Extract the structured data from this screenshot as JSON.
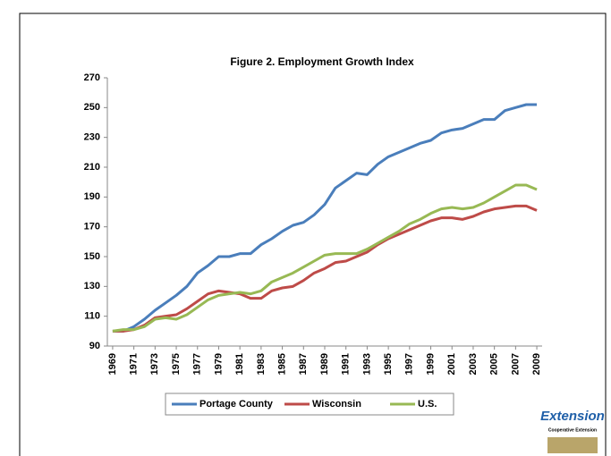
{
  "chart_data": {
    "type": "line",
    "title": "Figure 2. Employment Growth Index",
    "x": [
      1969,
      1970,
      1971,
      1972,
      1973,
      1974,
      1975,
      1976,
      1977,
      1978,
      1979,
      1980,
      1981,
      1982,
      1983,
      1984,
      1985,
      1986,
      1987,
      1988,
      1989,
      1990,
      1991,
      1992,
      1993,
      1994,
      1995,
      1996,
      1997,
      1998,
      1999,
      2000,
      2001,
      2002,
      2003,
      2004,
      2005,
      2006,
      2007,
      2008,
      2009
    ],
    "xlim": [
      1968.5,
      2009.5
    ],
    "xticks": [
      1969,
      1971,
      1973,
      1975,
      1977,
      1979,
      1981,
      1983,
      1985,
      1987,
      1989,
      1991,
      1993,
      1995,
      1997,
      1999,
      2001,
      2003,
      2005,
      2007,
      2009
    ],
    "ylim": [
      90,
      270
    ],
    "yticks": [
      90,
      110,
      130,
      150,
      170,
      190,
      210,
      230,
      250,
      270
    ],
    "grid": false,
    "legend": "bottom",
    "series": [
      {
        "name": "Portage County",
        "color": "#4a7ebb",
        "values": [
          100,
          100,
          103,
          108,
          114,
          119,
          124,
          130,
          139,
          144,
          150,
          150,
          152,
          152,
          158,
          162,
          167,
          171,
          173,
          178,
          185,
          196,
          201,
          206,
          205,
          212,
          217,
          220,
          223,
          226,
          228,
          233,
          235,
          236,
          239,
          242,
          242,
          248,
          250,
          252,
          252
        ]
      },
      {
        "name": "Wisconsin",
        "color": "#be4b48",
        "values": [
          100,
          100,
          101,
          104,
          109,
          110,
          111,
          115,
          120,
          125,
          127,
          126,
          125,
          122,
          122,
          127,
          129,
          130,
          134,
          139,
          142,
          146,
          147,
          150,
          153,
          158,
          162,
          165,
          168,
          171,
          174,
          176,
          176,
          175,
          177,
          180,
          182,
          183,
          184,
          184,
          181
        ]
      },
      {
        "name": "U.S.",
        "color": "#98b954",
        "values": [
          100,
          101,
          101,
          103,
          108,
          109,
          108,
          111,
          116,
          121,
          124,
          125,
          126,
          125,
          127,
          133,
          136,
          139,
          143,
          147,
          151,
          152,
          152,
          152,
          155,
          159,
          163,
          167,
          172,
          175,
          179,
          182,
          183,
          182,
          183,
          186,
          190,
          194,
          198,
          198,
          195
        ]
      }
    ]
  },
  "logo": {
    "name": "Extension",
    "subtitle": "Cooperative Extension"
  }
}
